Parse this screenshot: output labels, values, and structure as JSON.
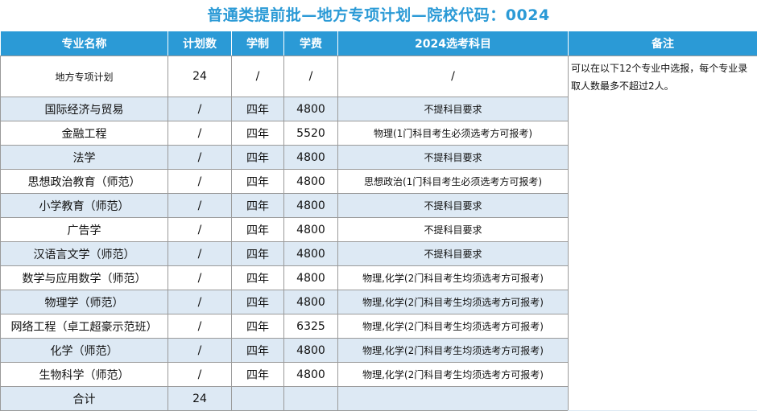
{
  "title": "普通类提前批—地方专项计划—院校代码：0024",
  "headers": {
    "major": "专业名称",
    "plan": "计划数",
    "duration": "学制",
    "fee": "学费",
    "subjects": "2024选考科目",
    "remark": "备注"
  },
  "first_row": {
    "name": "地方专项计划",
    "plan": "24",
    "duration": "/",
    "fee": "/",
    "subjects": "/"
  },
  "remark": "可以在以下12个专业中选报，每个专业录取人数最多不超过2人。",
  "rows": [
    {
      "name": "国际经济与贸易",
      "plan": "/",
      "duration": "四年",
      "fee": "4800",
      "subjects": "不提科目要求"
    },
    {
      "name": "金融工程",
      "plan": "/",
      "duration": "四年",
      "fee": "5520",
      "subjects": "物理(1门科目考生必须选考方可报考)"
    },
    {
      "name": "法学",
      "plan": "/",
      "duration": "四年",
      "fee": "4800",
      "subjects": "不提科目要求"
    },
    {
      "name": "思想政治教育（师范）",
      "plan": "/",
      "duration": "四年",
      "fee": "4800",
      "subjects": "思想政治(1门科目考生必须选考方可报考)"
    },
    {
      "name": "小学教育（师范）",
      "plan": "/",
      "duration": "四年",
      "fee": "4800",
      "subjects": "不提科目要求"
    },
    {
      "name": "广告学",
      "plan": "/",
      "duration": "四年",
      "fee": "4800",
      "subjects": "不提科目要求"
    },
    {
      "name": "汉语言文学（师范）",
      "plan": "/",
      "duration": "四年",
      "fee": "4800",
      "subjects": "不提科目要求"
    },
    {
      "name": "数学与应用数学（师范）",
      "plan": "/",
      "duration": "四年",
      "fee": "4800",
      "subjects": "物理,化学(2门科目考生均须选考方可报考)"
    },
    {
      "name": "物理学（师范）",
      "plan": "/",
      "duration": "四年",
      "fee": "4800",
      "subjects": "物理,化学(2门科目考生均须选考方可报考)"
    },
    {
      "name": "网络工程（卓工超豪示范班）",
      "plan": "/",
      "duration": "四年",
      "fee": "6325",
      "subjects": "物理,化学(2门科目考生均须选考方可报考)"
    },
    {
      "name": "化学（师范）",
      "plan": "/",
      "duration": "四年",
      "fee": "4800",
      "subjects": "物理,化学(2门科目考生均须选考方可报考)"
    },
    {
      "name": "生物科学（师范）",
      "plan": "/",
      "duration": "四年",
      "fee": "4800",
      "subjects": "物理,化学(2门科目考生均须选考方可报考)"
    }
  ],
  "total": {
    "label": "合计",
    "plan": "24"
  },
  "colors": {
    "header_bg": "#2b9ad6",
    "title": "#2b9ad6",
    "stripe": "#dde9f4"
  }
}
